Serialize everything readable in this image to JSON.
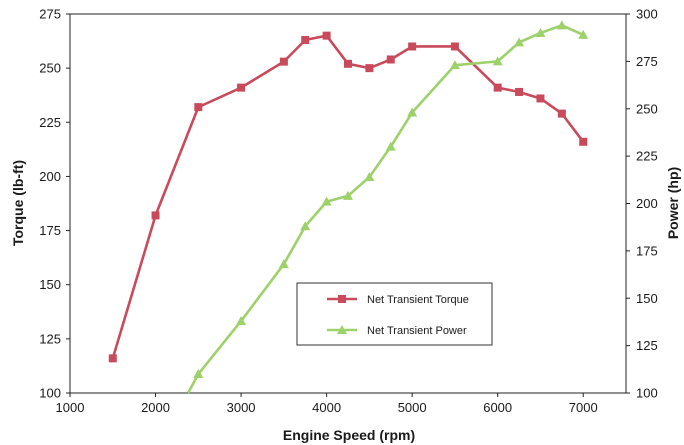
{
  "chart_data": {
    "type": "line",
    "title": "",
    "xlabel": "Engine Speed (rpm)",
    "ylabel_left": "Torque (lb-ft)",
    "ylabel_right": "Power (hp)",
    "xlim": [
      1000,
      7500
    ],
    "ylim_left": [
      100,
      275
    ],
    "ylim_right": [
      100,
      300
    ],
    "x_ticks": [
      1000,
      2000,
      3000,
      4000,
      5000,
      6000,
      7000
    ],
    "y_left_ticks": [
      100,
      125,
      150,
      175,
      200,
      225,
      250,
      275
    ],
    "y_right_ticks": [
      100,
      125,
      150,
      175,
      200,
      225,
      250,
      275,
      300
    ],
    "grid": false,
    "legend_position": "inside-lower-center",
    "series": [
      {
        "name": "Net Transient Torque",
        "axis": "left",
        "color": "#c94a5a",
        "marker": "square",
        "x": [
          1500,
          2000,
          2500,
          3000,
          3500,
          3750,
          4000,
          4250,
          4500,
          4750,
          5000,
          5500,
          6000,
          6250,
          6500,
          6750,
          7000
        ],
        "y": [
          116,
          182,
          232,
          241,
          253,
          263,
          265,
          252,
          250,
          254,
          260,
          260,
          241,
          239,
          236,
          229,
          216
        ]
      },
      {
        "name": "Net Transient Power",
        "axis": "right",
        "color": "#9dd26a",
        "marker": "triangle",
        "x": [
          2380,
          2500,
          3000,
          3500,
          3750,
          4000,
          4250,
          4500,
          4750,
          5000,
          5500,
          6000,
          6250,
          6500,
          6750,
          7000
        ],
        "y": [
          100,
          110,
          138,
          168,
          188,
          201,
          204,
          214,
          230,
          248,
          273,
          275,
          285,
          290,
          294,
          289
        ]
      }
    ]
  }
}
